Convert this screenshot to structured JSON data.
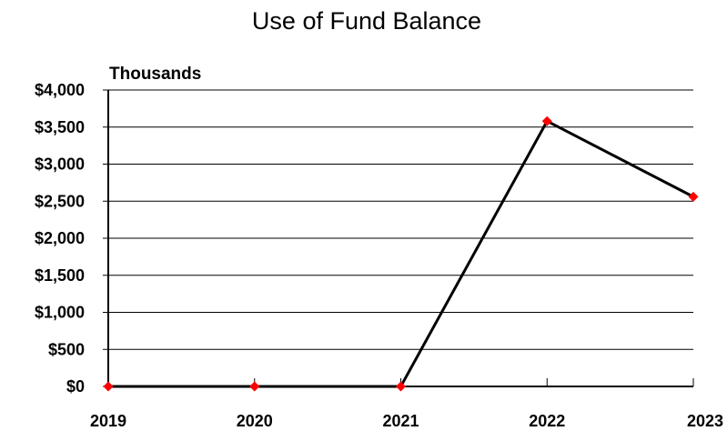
{
  "chart_data": {
    "type": "line",
    "title": "Use of Fund Balance",
    "units_label": "Thousands",
    "xlabel": "",
    "ylabel": "",
    "categories": [
      "2019",
      "2020",
      "2021",
      "2022",
      "2023"
    ],
    "series": [
      {
        "values": [
          0,
          0,
          0,
          3580,
          2560
        ]
      }
    ],
    "ylim": [
      0,
      4000
    ],
    "yticks": [
      0,
      500,
      1000,
      1500,
      2000,
      2500,
      3000,
      3500,
      4000
    ],
    "ytick_labels": [
      "$0",
      "$500",
      "$1,000",
      "$1,500",
      "$2,000",
      "$2,500",
      "$3,000",
      "$3,500",
      "$4,000"
    ],
    "grid": true,
    "legend": "none",
    "colors": {
      "line": "#000000",
      "marker": "#ff0000"
    }
  }
}
